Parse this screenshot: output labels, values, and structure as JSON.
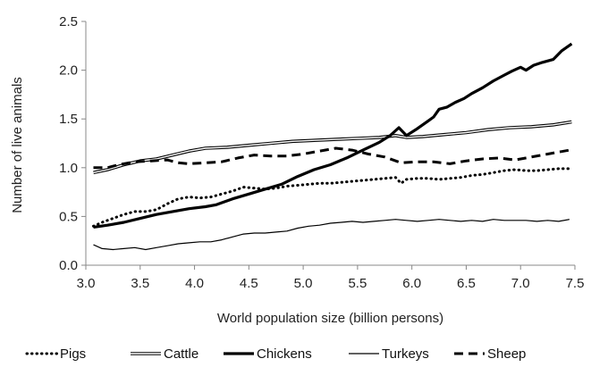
{
  "chart_data": {
    "type": "line",
    "title": "",
    "xlabel": "World population size (billion persons)",
    "ylabel": "Number of live animals",
    "xlim": [
      3.0,
      7.5
    ],
    "ylim": [
      0.0,
      2.5
    ],
    "grid": false,
    "legend_position": "bottom",
    "x_ticks": [
      "3.0",
      "3.5",
      "4.0",
      "4.5",
      "5.0",
      "5.5",
      "6.0",
      "6.5",
      "7.0",
      "7.5"
    ],
    "y_ticks": [
      "0.0",
      "0.5",
      "1.0",
      "1.5",
      "2.0",
      "2.5"
    ],
    "series": [
      {
        "name": "Pigs",
        "style": "dotted",
        "color": "#000000",
        "points": [
          [
            3.07,
            0.4
          ],
          [
            3.15,
            0.44
          ],
          [
            3.25,
            0.48
          ],
          [
            3.35,
            0.52
          ],
          [
            3.45,
            0.55
          ],
          [
            3.55,
            0.55
          ],
          [
            3.65,
            0.57
          ],
          [
            3.75,
            0.63
          ],
          [
            3.85,
            0.68
          ],
          [
            3.95,
            0.7
          ],
          [
            4.05,
            0.69
          ],
          [
            4.15,
            0.7
          ],
          [
            4.25,
            0.73
          ],
          [
            4.35,
            0.76
          ],
          [
            4.45,
            0.8
          ],
          [
            4.55,
            0.79
          ],
          [
            4.65,
            0.78
          ],
          [
            4.75,
            0.79
          ],
          [
            4.85,
            0.81
          ],
          [
            4.95,
            0.82
          ],
          [
            5.05,
            0.83
          ],
          [
            5.15,
            0.84
          ],
          [
            5.25,
            0.84
          ],
          [
            5.35,
            0.85
          ],
          [
            5.45,
            0.86
          ],
          [
            5.55,
            0.87
          ],
          [
            5.65,
            0.88
          ],
          [
            5.75,
            0.89
          ],
          [
            5.85,
            0.9
          ],
          [
            5.9,
            0.84
          ],
          [
            5.95,
            0.88
          ],
          [
            6.05,
            0.89
          ],
          [
            6.15,
            0.89
          ],
          [
            6.25,
            0.88
          ],
          [
            6.35,
            0.89
          ],
          [
            6.45,
            0.9
          ],
          [
            6.55,
            0.92
          ],
          [
            6.65,
            0.93
          ],
          [
            6.75,
            0.95
          ],
          [
            6.85,
            0.97
          ],
          [
            6.95,
            0.98
          ],
          [
            7.05,
            0.97
          ],
          [
            7.15,
            0.97
          ],
          [
            7.25,
            0.98
          ],
          [
            7.35,
            0.99
          ],
          [
            7.45,
            0.99
          ]
        ]
      },
      {
        "name": "Cattle",
        "style": "double",
        "color": "#000000",
        "points": [
          [
            3.07,
            0.95
          ],
          [
            3.2,
            0.98
          ],
          [
            3.35,
            1.03
          ],
          [
            3.5,
            1.07
          ],
          [
            3.65,
            1.09
          ],
          [
            3.8,
            1.13
          ],
          [
            3.95,
            1.17
          ],
          [
            4.1,
            1.2
          ],
          [
            4.3,
            1.21
          ],
          [
            4.5,
            1.23
          ],
          [
            4.7,
            1.25
          ],
          [
            4.9,
            1.27
          ],
          [
            5.1,
            1.28
          ],
          [
            5.3,
            1.29
          ],
          [
            5.5,
            1.3
          ],
          [
            5.7,
            1.31
          ],
          [
            5.85,
            1.33
          ],
          [
            5.95,
            1.31
          ],
          [
            6.1,
            1.32
          ],
          [
            6.3,
            1.34
          ],
          [
            6.5,
            1.36
          ],
          [
            6.7,
            1.39
          ],
          [
            6.9,
            1.41
          ],
          [
            7.1,
            1.42
          ],
          [
            7.3,
            1.44
          ],
          [
            7.47,
            1.47
          ]
        ]
      },
      {
        "name": "Chickens",
        "style": "thick",
        "color": "#000000",
        "points": [
          [
            3.07,
            0.39
          ],
          [
            3.2,
            0.41
          ],
          [
            3.35,
            0.44
          ],
          [
            3.5,
            0.48
          ],
          [
            3.65,
            0.52
          ],
          [
            3.8,
            0.55
          ],
          [
            3.95,
            0.58
          ],
          [
            4.1,
            0.6
          ],
          [
            4.2,
            0.62
          ],
          [
            4.35,
            0.68
          ],
          [
            4.5,
            0.73
          ],
          [
            4.65,
            0.78
          ],
          [
            4.8,
            0.83
          ],
          [
            4.95,
            0.91
          ],
          [
            5.1,
            0.98
          ],
          [
            5.25,
            1.03
          ],
          [
            5.4,
            1.1
          ],
          [
            5.55,
            1.18
          ],
          [
            5.7,
            1.26
          ],
          [
            5.8,
            1.33
          ],
          [
            5.88,
            1.41
          ],
          [
            5.95,
            1.33
          ],
          [
            6.05,
            1.4
          ],
          [
            6.15,
            1.48
          ],
          [
            6.2,
            1.52
          ],
          [
            6.25,
            1.6
          ],
          [
            6.32,
            1.62
          ],
          [
            6.4,
            1.67
          ],
          [
            6.48,
            1.71
          ],
          [
            6.55,
            1.76
          ],
          [
            6.65,
            1.82
          ],
          [
            6.75,
            1.89
          ],
          [
            6.85,
            1.95
          ],
          [
            6.92,
            1.99
          ],
          [
            7.0,
            2.03
          ],
          [
            7.05,
            2.0
          ],
          [
            7.12,
            2.05
          ],
          [
            7.2,
            2.08
          ],
          [
            7.3,
            2.11
          ],
          [
            7.38,
            2.2
          ],
          [
            7.47,
            2.27
          ]
        ]
      },
      {
        "name": "Turkeys",
        "style": "thin",
        "color": "#000000",
        "points": [
          [
            3.07,
            0.21
          ],
          [
            3.15,
            0.17
          ],
          [
            3.25,
            0.16
          ],
          [
            3.35,
            0.17
          ],
          [
            3.45,
            0.18
          ],
          [
            3.55,
            0.16
          ],
          [
            3.65,
            0.18
          ],
          [
            3.75,
            0.2
          ],
          [
            3.85,
            0.22
          ],
          [
            3.95,
            0.23
          ],
          [
            4.05,
            0.24
          ],
          [
            4.15,
            0.24
          ],
          [
            4.25,
            0.26
          ],
          [
            4.35,
            0.29
          ],
          [
            4.45,
            0.32
          ],
          [
            4.55,
            0.33
          ],
          [
            4.65,
            0.33
          ],
          [
            4.75,
            0.34
          ],
          [
            4.85,
            0.35
          ],
          [
            4.95,
            0.38
          ],
          [
            5.05,
            0.4
          ],
          [
            5.15,
            0.41
          ],
          [
            5.25,
            0.43
          ],
          [
            5.35,
            0.44
          ],
          [
            5.45,
            0.45
          ],
          [
            5.55,
            0.44
          ],
          [
            5.65,
            0.45
          ],
          [
            5.75,
            0.46
          ],
          [
            5.85,
            0.47
          ],
          [
            5.95,
            0.46
          ],
          [
            6.05,
            0.45
          ],
          [
            6.15,
            0.46
          ],
          [
            6.25,
            0.47
          ],
          [
            6.35,
            0.46
          ],
          [
            6.45,
            0.45
          ],
          [
            6.55,
            0.46
          ],
          [
            6.65,
            0.45
          ],
          [
            6.75,
            0.47
          ],
          [
            6.85,
            0.46
          ],
          [
            6.95,
            0.46
          ],
          [
            7.05,
            0.46
          ],
          [
            7.15,
            0.45
          ],
          [
            7.25,
            0.46
          ],
          [
            7.35,
            0.45
          ],
          [
            7.45,
            0.47
          ]
        ]
      },
      {
        "name": "Sheep",
        "style": "dashed",
        "color": "#000000",
        "points": [
          [
            3.07,
            1.0
          ],
          [
            3.2,
            1.0
          ],
          [
            3.3,
            1.03
          ],
          [
            3.45,
            1.06
          ],
          [
            3.6,
            1.07
          ],
          [
            3.75,
            1.08
          ],
          [
            3.85,
            1.05
          ],
          [
            3.95,
            1.04
          ],
          [
            4.1,
            1.05
          ],
          [
            4.25,
            1.06
          ],
          [
            4.4,
            1.1
          ],
          [
            4.55,
            1.13
          ],
          [
            4.7,
            1.12
          ],
          [
            4.85,
            1.12
          ],
          [
            5.0,
            1.14
          ],
          [
            5.15,
            1.17
          ],
          [
            5.3,
            1.2
          ],
          [
            5.45,
            1.18
          ],
          [
            5.6,
            1.14
          ],
          [
            5.75,
            1.11
          ],
          [
            5.9,
            1.05
          ],
          [
            6.05,
            1.06
          ],
          [
            6.2,
            1.06
          ],
          [
            6.35,
            1.04
          ],
          [
            6.5,
            1.07
          ],
          [
            6.65,
            1.09
          ],
          [
            6.8,
            1.1
          ],
          [
            6.95,
            1.08
          ],
          [
            7.1,
            1.11
          ],
          [
            7.25,
            1.14
          ],
          [
            7.35,
            1.16
          ],
          [
            7.45,
            1.18
          ]
        ]
      }
    ]
  }
}
